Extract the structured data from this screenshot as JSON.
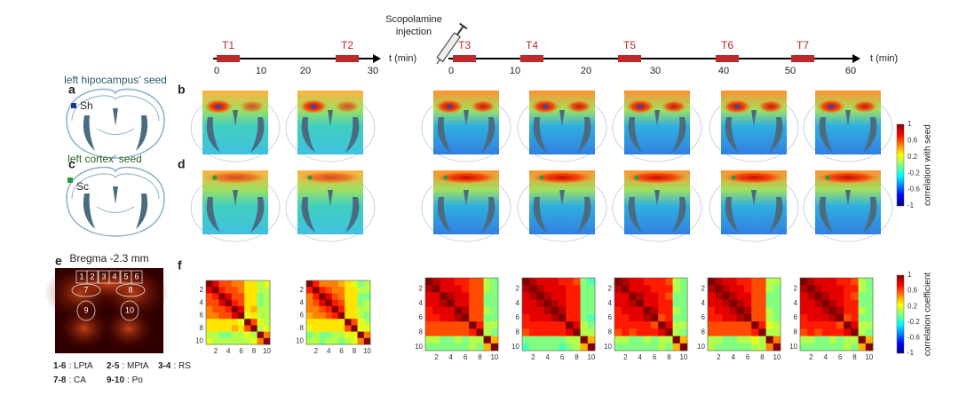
{
  "panels": [
    "a",
    "b",
    "c",
    "d",
    "e",
    "f"
  ],
  "injection": {
    "line1": "Scopolamine",
    "line2": "injection"
  },
  "timeline_pre": {
    "ticks": [
      "0",
      "10",
      "20",
      "30"
    ],
    "unit": "t (min)",
    "epochs": [
      "T1",
      "T2"
    ]
  },
  "timeline_post": {
    "ticks": [
      "0",
      "10",
      "20",
      "30",
      "40",
      "50",
      "60"
    ],
    "unit": "t (min)",
    "epochs": [
      "T3",
      "T4",
      "T5",
      "T6",
      "T7"
    ]
  },
  "seed_a": {
    "title": "left hipocampus' seed",
    "label": "Sh"
  },
  "seed_c": {
    "title": "left cortex' seed",
    "label": "Sc"
  },
  "atlas": {
    "title": "Bregma -2.3 mm",
    "regions": [
      "1",
      "2",
      "3",
      "4",
      "5",
      "6",
      "7",
      "8",
      "9",
      "10"
    ],
    "legend": [
      {
        "key": "1-6",
        "name": ": LPtA"
      },
      {
        "key": "2-5",
        "name": ": MPtA"
      },
      {
        "key": "3-4",
        "name": ": RS"
      },
      {
        "key": "7-8",
        "name": ": CA"
      },
      {
        "key": "9-10",
        "name": ": Po"
      }
    ]
  },
  "colorbar_seed": {
    "label": "correlation with seed",
    "ticks": [
      "1",
      "0.6",
      "0.2",
      "-0.2",
      "-0.6",
      "-1"
    ]
  },
  "colorbar_matrix": {
    "label": "correlation coefficient",
    "ticks": [
      "1",
      "0.6",
      "0.2",
      "-0.2",
      "-0.6",
      "-1"
    ]
  },
  "matrix_ticks": [
    "2",
    "4",
    "6",
    "8",
    "10"
  ],
  "matrices": [
    {
      "values": [
        [
          1,
          0.8,
          0.6,
          0.6,
          0.5,
          0.5,
          0.3,
          0.3,
          0.1,
          0.2
        ],
        [
          0.8,
          1,
          0.7,
          0.6,
          0.6,
          0.5,
          0.3,
          0.3,
          0.1,
          0.1
        ],
        [
          0.6,
          0.7,
          1,
          0.8,
          0.6,
          0.6,
          0.3,
          0.3,
          0,
          0.1
        ],
        [
          0.6,
          0.6,
          0.8,
          1,
          0.7,
          0.6,
          0.3,
          0.3,
          0,
          0.1
        ],
        [
          0.5,
          0.6,
          0.6,
          0.7,
          1,
          0.8,
          0.3,
          0.4,
          0.1,
          0.1
        ],
        [
          0.5,
          0.5,
          0.6,
          0.6,
          0.8,
          1,
          0.2,
          0.3,
          0.1,
          0.1
        ],
        [
          0.3,
          0.3,
          0.3,
          0.3,
          0.3,
          0.2,
          1,
          0.6,
          0.2,
          0.1
        ],
        [
          0.3,
          0.3,
          0.3,
          0.3,
          0.4,
          0.3,
          0.6,
          1,
          0.1,
          0.2
        ],
        [
          0.1,
          0.1,
          0,
          0,
          0.1,
          0.1,
          0.2,
          0.1,
          1,
          0.5
        ],
        [
          0.2,
          0.1,
          0.1,
          0.1,
          0.1,
          0.1,
          0.1,
          0.2,
          0.5,
          1
        ]
      ]
    },
    {
      "values": [
        [
          1,
          0.7,
          0.5,
          0.5,
          0.5,
          0.4,
          0.3,
          0.2,
          0,
          0.1
        ],
        [
          0.7,
          1,
          0.7,
          0.6,
          0.5,
          0.5,
          0.3,
          0.3,
          0.1,
          0.1
        ],
        [
          0.5,
          0.7,
          1,
          0.8,
          0.6,
          0.5,
          0.3,
          0.3,
          0,
          0
        ],
        [
          0.5,
          0.6,
          0.8,
          1,
          0.7,
          0.6,
          0.3,
          0.3,
          0,
          0.1
        ],
        [
          0.5,
          0.5,
          0.6,
          0.7,
          1,
          0.7,
          0.3,
          0.3,
          0.1,
          0.1
        ],
        [
          0.4,
          0.5,
          0.5,
          0.6,
          0.7,
          1,
          0.3,
          0.3,
          0.1,
          0
        ],
        [
          0.3,
          0.3,
          0.3,
          0.3,
          0.3,
          0.3,
          1,
          0.6,
          0.2,
          0.1
        ],
        [
          0.2,
          0.3,
          0.3,
          0.3,
          0.3,
          0.3,
          0.6,
          1,
          0.2,
          0.2
        ],
        [
          0,
          0.1,
          0,
          0,
          0.1,
          0.1,
          0.2,
          0.2,
          1,
          0.5
        ],
        [
          0.1,
          0.1,
          0,
          0.1,
          0.1,
          0,
          0.1,
          0.2,
          0.5,
          1
        ]
      ]
    },
    {
      "values": [
        [
          1,
          0.9,
          0.8,
          0.8,
          0.7,
          0.7,
          0.6,
          0.6,
          0.1,
          0
        ],
        [
          0.9,
          1,
          0.8,
          0.8,
          0.8,
          0.7,
          0.6,
          0.6,
          0.1,
          0
        ],
        [
          0.8,
          0.8,
          1,
          0.9,
          0.8,
          0.8,
          0.6,
          0.6,
          0,
          0
        ],
        [
          0.8,
          0.8,
          0.9,
          1,
          0.8,
          0.8,
          0.6,
          0.6,
          0,
          0
        ],
        [
          0.7,
          0.8,
          0.8,
          0.8,
          1,
          0.9,
          0.6,
          0.6,
          0.1,
          0
        ],
        [
          0.7,
          0.7,
          0.8,
          0.8,
          0.9,
          1,
          0.6,
          0.6,
          0,
          0
        ],
        [
          0.6,
          0.6,
          0.6,
          0.6,
          0.6,
          0.6,
          1,
          0.7,
          0.1,
          0.1
        ],
        [
          0.6,
          0.6,
          0.6,
          0.6,
          0.6,
          0.6,
          0.7,
          1,
          0.1,
          0
        ],
        [
          0.1,
          0.1,
          0,
          0,
          0.1,
          0,
          0.1,
          0.1,
          1,
          0.4
        ],
        [
          0,
          0,
          0,
          0,
          0,
          0,
          0.1,
          0,
          0.4,
          1
        ]
      ]
    },
    {
      "values": [
        [
          1,
          0.9,
          0.8,
          0.8,
          0.8,
          0.7,
          0.7,
          0.6,
          0,
          -0.1
        ],
        [
          0.9,
          1,
          0.9,
          0.8,
          0.8,
          0.8,
          0.7,
          0.7,
          0,
          0
        ],
        [
          0.8,
          0.9,
          1,
          0.9,
          0.8,
          0.8,
          0.7,
          0.7,
          0,
          0
        ],
        [
          0.8,
          0.8,
          0.9,
          1,
          0.9,
          0.8,
          0.7,
          0.7,
          0,
          0
        ],
        [
          0.8,
          0.8,
          0.8,
          0.9,
          1,
          0.9,
          0.7,
          0.7,
          0,
          0
        ],
        [
          0.7,
          0.8,
          0.8,
          0.8,
          0.9,
          1,
          0.7,
          0.7,
          0,
          -0.1
        ],
        [
          0.7,
          0.7,
          0.7,
          0.7,
          0.7,
          0.7,
          1,
          0.8,
          0.1,
          0
        ],
        [
          0.6,
          0.7,
          0.7,
          0.7,
          0.7,
          0.7,
          0.8,
          1,
          0.1,
          0.1
        ],
        [
          0,
          0,
          0,
          0,
          0,
          0,
          0.1,
          0.1,
          1,
          0.4
        ],
        [
          -0.1,
          0,
          0,
          0,
          0,
          -0.1,
          0,
          0.1,
          0.4,
          1
        ]
      ]
    },
    {
      "values": [
        [
          1,
          0.9,
          0.8,
          0.8,
          0.7,
          0.7,
          0.7,
          0.6,
          0.1,
          0
        ],
        [
          0.9,
          1,
          0.8,
          0.8,
          0.8,
          0.7,
          0.7,
          0.7,
          0.1,
          0
        ],
        [
          0.8,
          0.8,
          1,
          0.9,
          0.8,
          0.8,
          0.7,
          0.6,
          0,
          0
        ],
        [
          0.8,
          0.8,
          0.9,
          1,
          0.8,
          0.8,
          0.7,
          0.7,
          0,
          0
        ],
        [
          0.7,
          0.8,
          0.8,
          0.8,
          1,
          0.9,
          0.7,
          0.7,
          0.1,
          0
        ],
        [
          0.7,
          0.7,
          0.8,
          0.8,
          0.9,
          1,
          0.6,
          0.7,
          0,
          0
        ],
        [
          0.7,
          0.7,
          0.7,
          0.7,
          0.7,
          0.6,
          1,
          0.8,
          0.1,
          0.1
        ],
        [
          0.6,
          0.7,
          0.6,
          0.7,
          0.7,
          0.7,
          0.8,
          1,
          0.1,
          0
        ],
        [
          0.1,
          0.1,
          0,
          0,
          0.1,
          0,
          0.1,
          0.1,
          1,
          0.4
        ],
        [
          0,
          0,
          0,
          0,
          0,
          0,
          0.1,
          0,
          0.4,
          1
        ]
      ]
    },
    {
      "values": [
        [
          1,
          0.9,
          0.8,
          0.8,
          0.7,
          0.7,
          0.6,
          0.6,
          0.1,
          0.1
        ],
        [
          0.9,
          1,
          0.9,
          0.8,
          0.8,
          0.7,
          0.6,
          0.6,
          0.1,
          0
        ],
        [
          0.8,
          0.9,
          1,
          0.9,
          0.8,
          0.8,
          0.6,
          0.6,
          0,
          0
        ],
        [
          0.8,
          0.8,
          0.9,
          1,
          0.9,
          0.8,
          0.6,
          0.6,
          0,
          0
        ],
        [
          0.7,
          0.8,
          0.8,
          0.9,
          1,
          0.9,
          0.6,
          0.6,
          0.1,
          0
        ],
        [
          0.7,
          0.7,
          0.8,
          0.8,
          0.9,
          1,
          0.6,
          0.6,
          0.1,
          0
        ],
        [
          0.6,
          0.6,
          0.6,
          0.6,
          0.6,
          0.6,
          1,
          0.7,
          0.2,
          0.1
        ],
        [
          0.6,
          0.6,
          0.6,
          0.6,
          0.6,
          0.6,
          0.7,
          1,
          0.1,
          0.1
        ],
        [
          0.1,
          0.1,
          0,
          0,
          0.1,
          0.1,
          0.2,
          0.1,
          1,
          0.5
        ],
        [
          0.1,
          0,
          0,
          0,
          0,
          0,
          0.1,
          0.1,
          0.5,
          1
        ]
      ]
    },
    {
      "values": [
        [
          1,
          0.9,
          0.8,
          0.8,
          0.8,
          0.7,
          0.7,
          0.6,
          0.1,
          0
        ],
        [
          0.9,
          1,
          0.9,
          0.8,
          0.8,
          0.8,
          0.7,
          0.7,
          0.1,
          0
        ],
        [
          0.8,
          0.9,
          1,
          0.9,
          0.8,
          0.8,
          0.7,
          0.6,
          0,
          0
        ],
        [
          0.8,
          0.8,
          0.9,
          1,
          0.9,
          0.8,
          0.7,
          0.7,
          0,
          0
        ],
        [
          0.8,
          0.8,
          0.8,
          0.9,
          1,
          0.9,
          0.7,
          0.7,
          0.1,
          0
        ],
        [
          0.7,
          0.8,
          0.8,
          0.8,
          0.9,
          1,
          0.6,
          0.7,
          0,
          0
        ],
        [
          0.7,
          0.7,
          0.7,
          0.7,
          0.7,
          0.6,
          1,
          0.8,
          0.1,
          0.1
        ],
        [
          0.6,
          0.7,
          0.6,
          0.7,
          0.7,
          0.7,
          0.8,
          1,
          0.1,
          0
        ],
        [
          0.1,
          0.1,
          0,
          0,
          0.1,
          0,
          0.1,
          0.1,
          1,
          0.4
        ],
        [
          0,
          0,
          0,
          0,
          0,
          0,
          0.1,
          0,
          0.4,
          1
        ]
      ]
    }
  ]
}
